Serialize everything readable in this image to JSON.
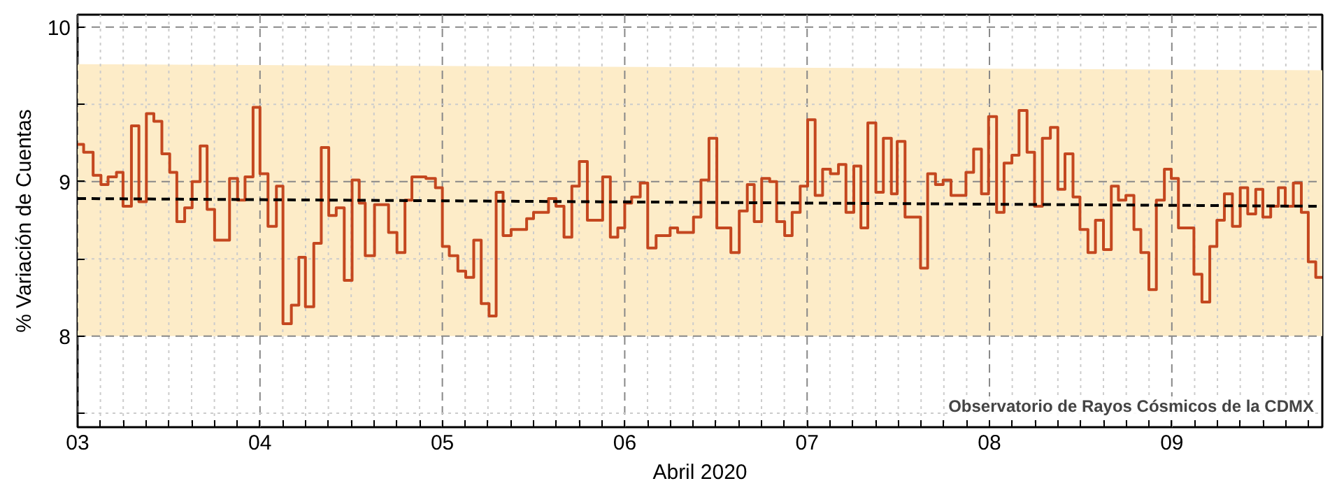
{
  "chart_data": {
    "type": "step",
    "xlabel": "Abril 2020",
    "ylabel": "% Variación de Cuentas",
    "annotations": [
      "Observatorio de Rayos Cósmicos de la CDMX"
    ],
    "xlim": [
      3,
      9.825
    ],
    "ylim": [
      7.41,
      10.08
    ],
    "xticks": [
      {
        "value": 3,
        "label": "03"
      },
      {
        "value": 3.125,
        "label": null
      },
      {
        "value": 3.25,
        "label": null
      },
      {
        "value": 3.375,
        "label": null
      },
      {
        "value": 3.5,
        "label": null
      },
      {
        "value": 3.625,
        "label": null
      },
      {
        "value": 3.75,
        "label": null
      },
      {
        "value": 3.875,
        "label": null
      },
      {
        "value": 4,
        "label": "04"
      },
      {
        "value": 4.125,
        "label": null
      },
      {
        "value": 4.25,
        "label": null
      },
      {
        "value": 4.375,
        "label": null
      },
      {
        "value": 4.5,
        "label": null
      },
      {
        "value": 4.625,
        "label": null
      },
      {
        "value": 4.75,
        "label": null
      },
      {
        "value": 4.875,
        "label": null
      },
      {
        "value": 5,
        "label": "05"
      },
      {
        "value": 5.125,
        "label": null
      },
      {
        "value": 5.25,
        "label": null
      },
      {
        "value": 5.375,
        "label": null
      },
      {
        "value": 5.5,
        "label": null
      },
      {
        "value": 5.625,
        "label": null
      },
      {
        "value": 5.75,
        "label": null
      },
      {
        "value": 5.875,
        "label": null
      },
      {
        "value": 6,
        "label": "06"
      },
      {
        "value": 6.125,
        "label": null
      },
      {
        "value": 6.25,
        "label": null
      },
      {
        "value": 6.375,
        "label": null
      },
      {
        "value": 6.5,
        "label": null
      },
      {
        "value": 6.625,
        "label": null
      },
      {
        "value": 6.75,
        "label": null
      },
      {
        "value": 6.875,
        "label": null
      },
      {
        "value": 7,
        "label": "07"
      },
      {
        "value": 7.125,
        "label": null
      },
      {
        "value": 7.25,
        "label": null
      },
      {
        "value": 7.375,
        "label": null
      },
      {
        "value": 7.5,
        "label": null
      },
      {
        "value": 7.625,
        "label": null
      },
      {
        "value": 7.75,
        "label": null
      },
      {
        "value": 7.875,
        "label": null
      },
      {
        "value": 8,
        "label": "08"
      },
      {
        "value": 8.125,
        "label": null
      },
      {
        "value": 8.25,
        "label": null
      },
      {
        "value": 8.375,
        "label": null
      },
      {
        "value": 8.5,
        "label": null
      },
      {
        "value": 8.625,
        "label": null
      },
      {
        "value": 8.75,
        "label": null
      },
      {
        "value": 8.875,
        "label": null
      },
      {
        "value": 9,
        "label": "09"
      },
      {
        "value": 9.125,
        "label": null
      },
      {
        "value": 9.25,
        "label": null
      },
      {
        "value": 9.375,
        "label": null
      },
      {
        "value": 9.5,
        "label": null
      },
      {
        "value": 9.625,
        "label": null
      },
      {
        "value": 9.75,
        "label": null
      }
    ],
    "yticks": [
      {
        "value": 7.5,
        "label": null
      },
      8,
      {
        "value": 8.5,
        "label": null
      },
      9,
      {
        "value": 9.5,
        "label": null
      },
      10
    ],
    "grid": true,
    "series": [
      {
        "color": "#c4471f",
        "line_style": "solid",
        "x": [
          3.0,
          3.033,
          3.085,
          3.128,
          3.167,
          3.213,
          3.249,
          3.295,
          3.336,
          3.377,
          3.418,
          3.462,
          3.505,
          3.544,
          3.587,
          3.628,
          3.672,
          3.71,
          3.751,
          3.833,
          3.877,
          3.918,
          3.962,
          4.0,
          4.044,
          4.09,
          4.126,
          4.172,
          4.213,
          4.249,
          4.295,
          4.336,
          4.377,
          4.418,
          4.462,
          4.505,
          4.544,
          4.577,
          4.628,
          4.705,
          4.751,
          4.795,
          4.833,
          4.91,
          4.962,
          5.0,
          5.038,
          5.085,
          5.128,
          5.172,
          5.213,
          5.256,
          5.295,
          5.333,
          5.377,
          5.462,
          5.5,
          5.582,
          5.623,
          5.667,
          5.71,
          5.751,
          5.795,
          5.879,
          5.921,
          5.962,
          6.0,
          6.038,
          6.085,
          6.126,
          6.172,
          6.249,
          6.29,
          6.377,
          6.418,
          6.462,
          6.505,
          6.582,
          6.628,
          6.672,
          6.71,
          6.751,
          6.795,
          6.833,
          6.877,
          6.918,
          6.962,
          7.003,
          7.044,
          7.085,
          7.128,
          7.172,
          7.213,
          7.256,
          7.295,
          7.333,
          7.377,
          7.418,
          7.462,
          7.494,
          7.537,
          7.622,
          7.661,
          7.704,
          7.746,
          7.789,
          7.871,
          7.913,
          7.956,
          7.995,
          8.039,
          8.08,
          8.123,
          8.162,
          8.206,
          8.247,
          8.29,
          8.334,
          8.375,
          8.414,
          8.458,
          8.496,
          8.54,
          8.581,
          8.625,
          8.668,
          8.707,
          8.748,
          8.792,
          8.83,
          8.874,
          8.915,
          8.959,
          8.997,
          9.036,
          9.121,
          9.165,
          9.208,
          9.247,
          9.288,
          9.332,
          9.375,
          9.416,
          9.46,
          9.499,
          9.542,
          9.584,
          9.622,
          9.666,
          9.71,
          9.748,
          9.789,
          9.825
        ],
        "values": [
          9.24,
          9.19,
          9.04,
          8.98,
          9.03,
          9.06,
          8.84,
          9.36,
          8.87,
          9.44,
          9.39,
          9.18,
          9.06,
          8.74,
          8.83,
          9.0,
          9.23,
          8.82,
          8.62,
          9.02,
          8.88,
          9.03,
          9.48,
          9.05,
          8.71,
          8.97,
          8.08,
          8.2,
          8.51,
          8.19,
          8.6,
          9.22,
          8.78,
          8.83,
          8.36,
          9.01,
          8.86,
          8.52,
          8.85,
          8.67,
          8.54,
          8.88,
          9.03,
          9.02,
          8.96,
          8.58,
          8.52,
          8.42,
          8.38,
          8.62,
          8.21,
          8.13,
          8.93,
          8.65,
          8.69,
          8.76,
          8.8,
          8.89,
          8.84,
          8.64,
          8.97,
          9.13,
          8.75,
          9.03,
          8.64,
          8.7,
          8.86,
          8.9,
          8.99,
          8.57,
          8.65,
          8.7,
          8.67,
          8.77,
          9.01,
          9.28,
          8.7,
          8.54,
          8.81,
          8.98,
          8.74,
          9.02,
          9.0,
          8.74,
          8.65,
          8.8,
          8.97,
          9.4,
          8.91,
          9.08,
          9.05,
          9.11,
          8.8,
          9.1,
          8.7,
          9.38,
          8.93,
          9.28,
          8.92,
          9.26,
          8.77,
          8.44,
          9.05,
          8.98,
          9.01,
          8.91,
          9.06,
          9.21,
          8.92,
          9.42,
          8.8,
          9.12,
          9.17,
          9.46,
          9.19,
          8.84,
          9.28,
          9.35,
          8.95,
          9.18,
          8.9,
          8.69,
          8.54,
          8.75,
          8.56,
          8.97,
          8.88,
          8.91,
          8.69,
          8.54,
          8.3,
          8.88,
          9.08,
          9.02,
          8.7,
          8.4,
          8.22,
          8.58,
          8.75,
          8.92,
          8.71,
          8.96,
          8.79,
          8.95,
          8.77,
          8.84,
          8.96,
          8.84,
          8.99,
          8.8,
          8.48,
          8.38,
          8.38
        ]
      },
      {
        "type": "line",
        "color": "#000000",
        "line_style": "dashed",
        "x": [
          3,
          9.825
        ],
        "values": [
          8.89,
          8.84
        ],
        "lower": [
          8.0,
          8.0
        ],
        "upper": [
          9.76,
          9.72
        ]
      }
    ]
  }
}
